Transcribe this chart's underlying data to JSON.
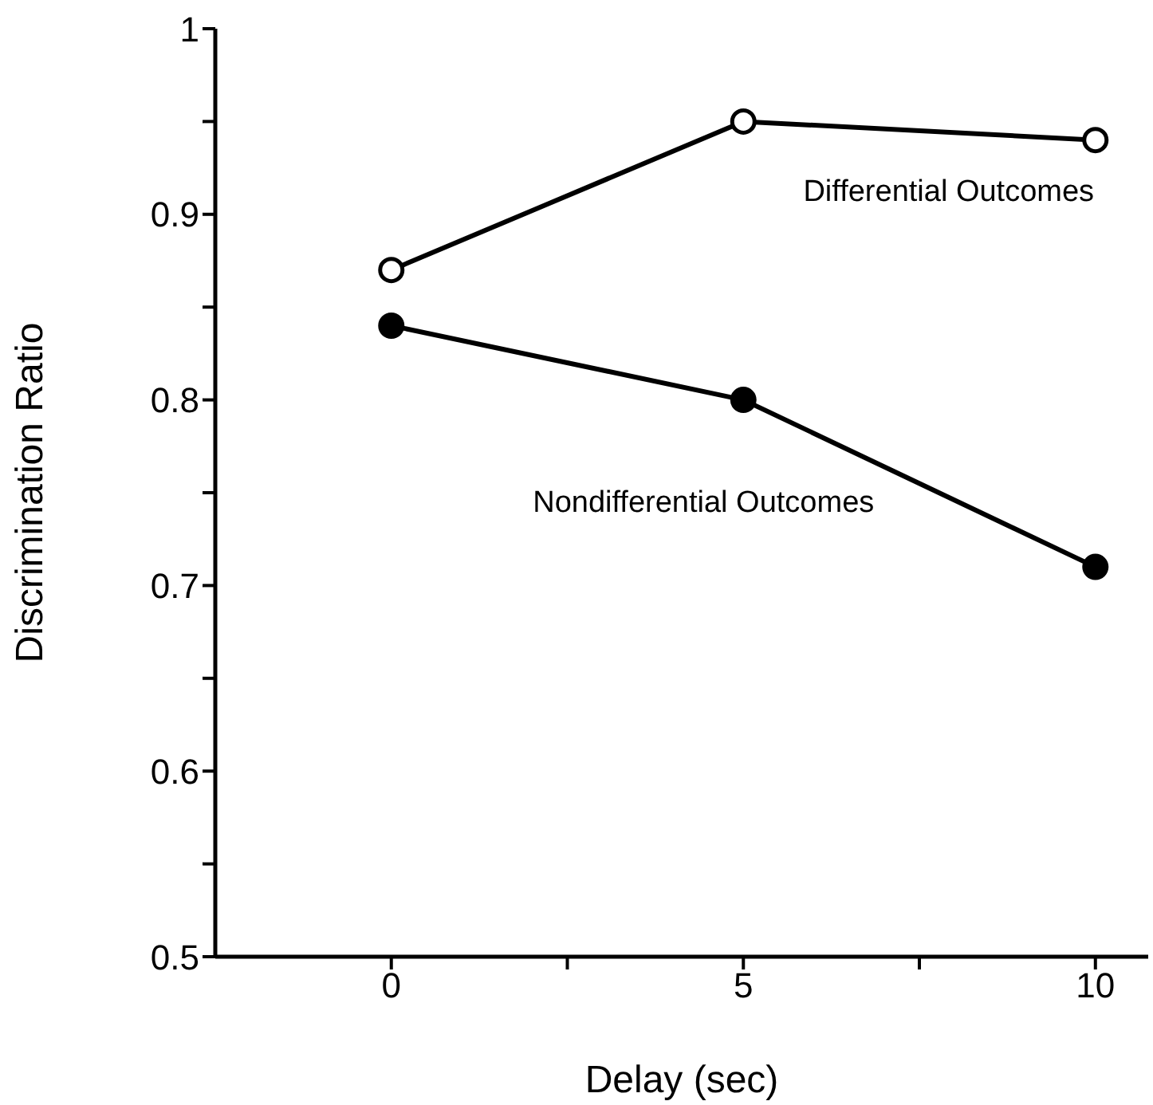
{
  "chart_data": {
    "type": "line",
    "xlabel": "Delay (sec)",
    "ylabel": "Discrimination Ratio",
    "x": [
      0,
      5,
      10
    ],
    "series": [
      {
        "name": "Differential Outcomes",
        "color": "#000000",
        "values": [
          0.87,
          0.95,
          0.94
        ]
      },
      {
        "name": "Nondifferential Outcomes",
        "color": "#000000",
        "values": [
          0.84,
          0.8,
          0.71
        ]
      }
    ],
    "xlim": [
      -2.5,
      10.75
    ],
    "xticks": [
      0,
      {
        "value": 2.5,
        "label": null
      },
      5,
      {
        "value": 7.5,
        "label": null
      },
      10
    ],
    "ylim": [
      0.5,
      1
    ],
    "yticks": [
      0.5,
      {
        "value": 0.55,
        "label": null
      },
      0.6,
      {
        "value": 0.65,
        "label": null
      },
      0.7,
      {
        "value": 0.75,
        "label": null
      },
      0.8,
      {
        "value": 0.85,
        "label": null
      },
      0.9,
      {
        "value": 0.95,
        "label": null
      },
      1
    ],
    "grid": false,
    "legend": false,
    "marker": "circle",
    "line_style": "solid"
  }
}
